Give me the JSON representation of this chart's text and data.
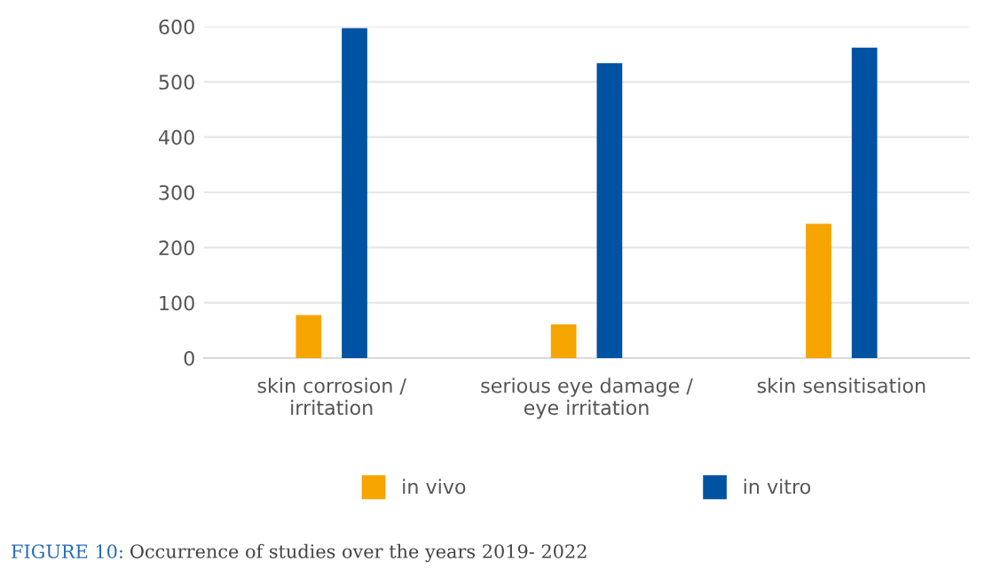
{
  "chart_data": {
    "type": "bar",
    "categories": [
      "skin corrosion /\nirritation",
      "serious eye damage /\neye irritation",
      "skin sensitisation"
    ],
    "series": [
      {
        "name": "in vivo",
        "color": "#f5a400",
        "values": [
          78,
          61,
          243
        ]
      },
      {
        "name": "in vitro",
        "color": "#0052a3",
        "values": [
          597,
          534,
          562
        ]
      }
    ],
    "ylim": [
      0,
      600
    ],
    "yticks": [
      0,
      100,
      200,
      300,
      400,
      500,
      600
    ],
    "grid": "y",
    "legend": "bottom",
    "annotations": [
      "FIGURE 10: Occurrence of studies over the years 2019- 2022"
    ]
  }
}
